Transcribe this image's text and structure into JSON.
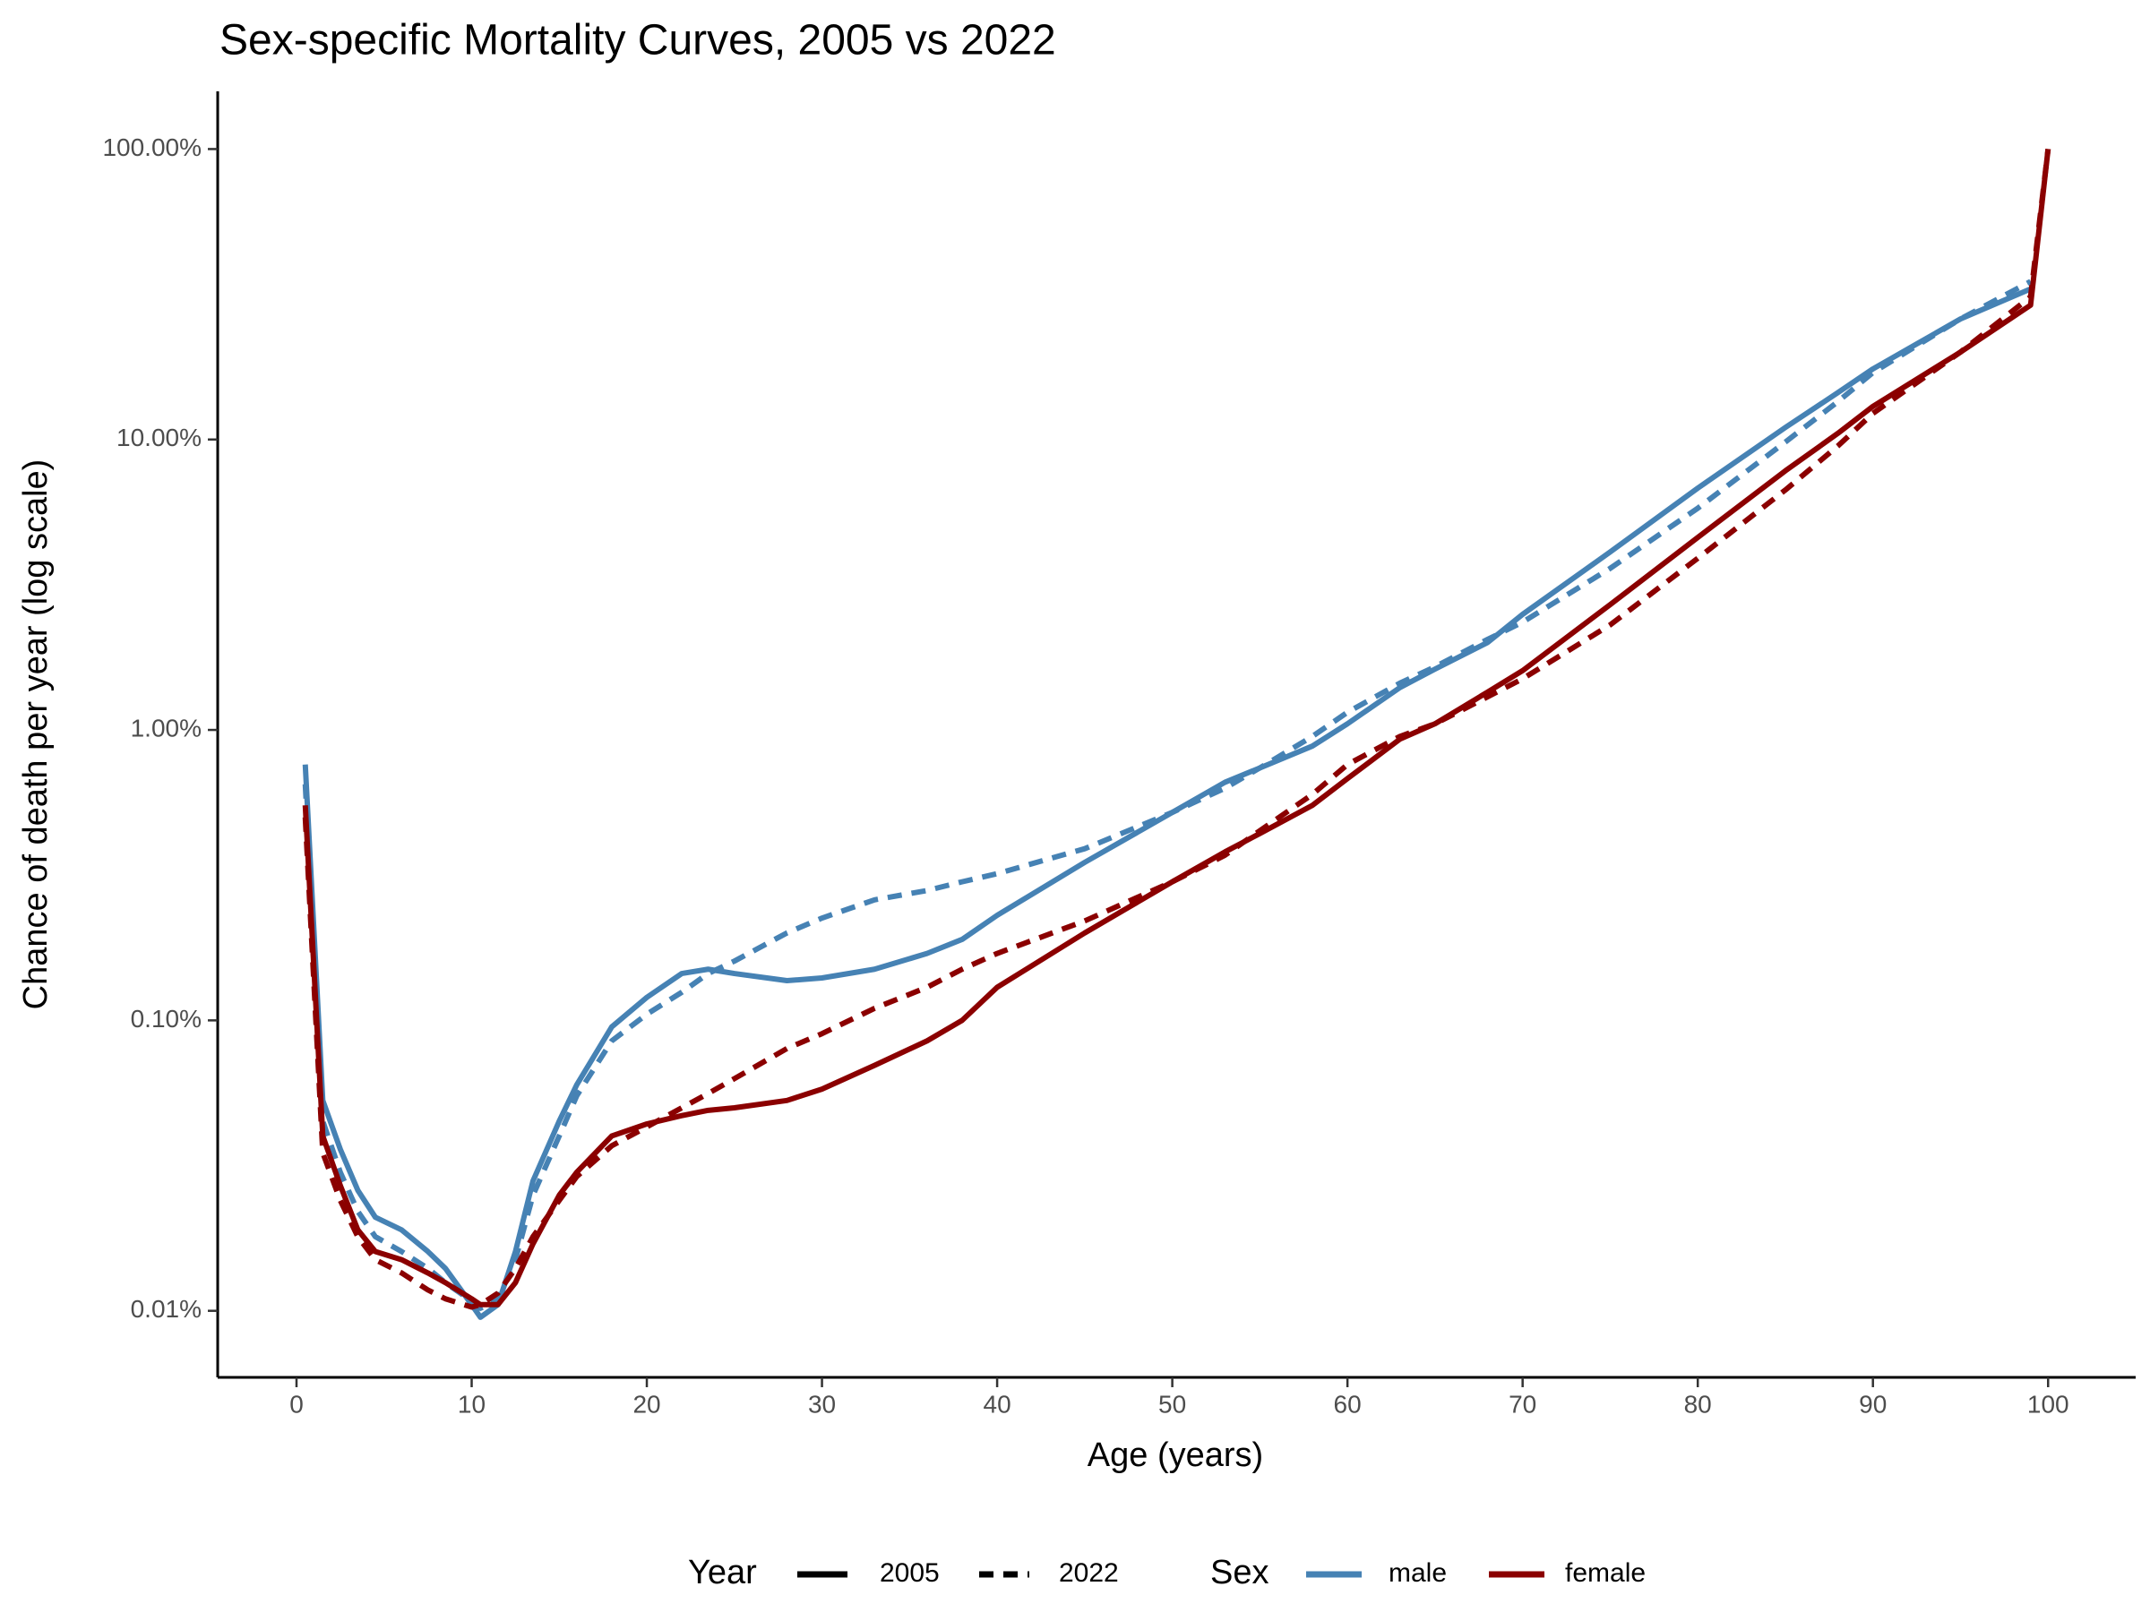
{
  "chart_data": {
    "type": "line",
    "title": "Sex-specific Mortality Curves, 2005 vs 2022",
    "x_label": "Age (years)",
    "y_label": "Chance of death per year (log scale)",
    "log_y": true,
    "grid": false,
    "legend_position": "bottom",
    "legend_titles": [
      "Year",
      "Sex"
    ],
    "x": [
      0.5,
      1.5,
      2.5,
      3.5,
      4.5,
      6,
      7.5,
      8.5,
      10,
      10.5,
      11.5,
      12.5,
      13.5,
      15,
      16,
      18,
      20,
      22,
      23.5,
      25,
      28,
      30,
      33,
      36,
      38,
      40,
      45,
      50,
      53,
      55,
      58,
      60,
      63,
      65,
      68,
      70,
      75,
      80,
      85,
      88,
      90,
      95,
      99,
      100
    ],
    "series": [
      {
        "sex": "male",
        "year": "2005",
        "color": "#4682b4",
        "dash": "solid",
        "values": [
          0.76,
          0.053,
          0.036,
          0.026,
          0.021,
          0.019,
          0.016,
          0.014,
          0.0105,
          0.0095,
          0.0105,
          0.016,
          0.028,
          0.045,
          0.06,
          0.095,
          0.12,
          0.145,
          0.15,
          0.145,
          0.137,
          0.14,
          0.15,
          0.17,
          0.19,
          0.23,
          0.35,
          0.52,
          0.66,
          0.74,
          0.88,
          1.05,
          1.4,
          1.62,
          2.0,
          2.5,
          4.1,
          6.8,
          11,
          14.5,
          17.5,
          26,
          33,
          null
        ]
      },
      {
        "sex": "male",
        "year": "2022",
        "color": "#4682b4",
        "dash": "dashed",
        "values": [
          0.65,
          0.045,
          0.03,
          0.022,
          0.018,
          0.016,
          0.014,
          0.0125,
          0.0108,
          0.0102,
          0.011,
          0.015,
          0.025,
          0.04,
          0.055,
          0.085,
          0.105,
          0.125,
          0.145,
          0.16,
          0.2,
          0.225,
          0.26,
          0.28,
          0.3,
          0.32,
          0.39,
          0.52,
          0.63,
          0.74,
          0.95,
          1.15,
          1.45,
          1.65,
          2.05,
          2.35,
          3.6,
          5.8,
          9.8,
          13.5,
          17,
          26,
          35,
          null
        ]
      },
      {
        "sex": "female",
        "year": "2005",
        "color": "#8b0000",
        "dash": "solid",
        "values": [
          0.55,
          0.04,
          0.027,
          0.019,
          0.016,
          0.015,
          0.0135,
          0.0125,
          0.011,
          0.0105,
          0.0105,
          0.0125,
          0.017,
          0.025,
          0.03,
          0.04,
          0.044,
          0.047,
          0.049,
          0.05,
          0.053,
          0.058,
          0.07,
          0.085,
          0.1,
          0.13,
          0.2,
          0.3,
          0.38,
          0.44,
          0.55,
          0.68,
          0.93,
          1.05,
          1.35,
          1.6,
          2.7,
          4.6,
          7.8,
          10.5,
          13,
          20,
          29,
          100
        ]
      },
      {
        "sex": "female",
        "year": "2022",
        "color": "#8b0000",
        "dash": "dashed",
        "values": [
          0.5,
          0.035,
          0.024,
          0.018,
          0.015,
          0.0135,
          0.0118,
          0.011,
          0.0103,
          0.0105,
          0.0115,
          0.014,
          0.018,
          0.024,
          0.029,
          0.037,
          0.043,
          0.05,
          0.056,
          0.063,
          0.08,
          0.09,
          0.11,
          0.13,
          0.15,
          0.17,
          0.22,
          0.3,
          0.37,
          0.45,
          0.6,
          0.76,
          0.95,
          1.05,
          1.3,
          1.5,
          2.3,
          3.9,
          6.7,
          9.5,
          12.3,
          20,
          31,
          100
        ]
      }
    ],
    "xlim": [
      -4.5,
      105
    ],
    "xticks": [
      0,
      10,
      20,
      30,
      40,
      50,
      60,
      70,
      80,
      90,
      100
    ],
    "ylim": [
      0.0059,
      158
    ],
    "yticks": [
      {
        "value": 0.01,
        "label": "0.01%"
      },
      {
        "value": 0.1,
        "label": "0.10%"
      },
      {
        "value": 1,
        "label": "1.00%"
      },
      {
        "value": 10,
        "label": "10.00%"
      },
      {
        "value": 100,
        "label": "100.00%"
      }
    ]
  }
}
